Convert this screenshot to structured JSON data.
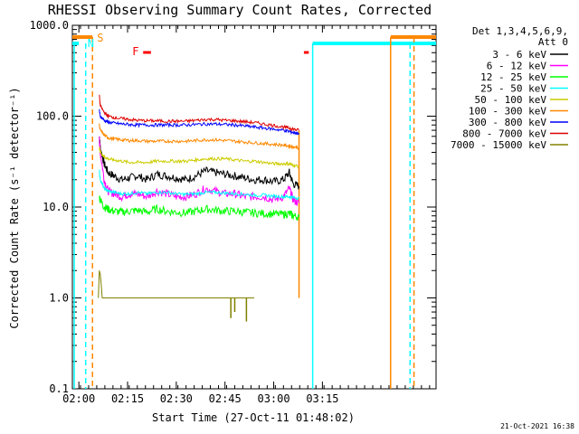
{
  "chart_data": {
    "type": "line",
    "title": "RHESSI Observing Summary Count Rates, Corrected",
    "xlabel": "Start Time (27-Oct-11 01:48:02)",
    "ylabel": "Corrected Count Rate (s⁻¹ detector⁻¹)",
    "yscale": "log",
    "ylim": [
      0.1,
      1000
    ],
    "xlim_minutes": [
      1.9667,
      3.8333
    ],
    "x_unit": "hour-of-day",
    "xticks": [
      {
        "label": "02:00",
        "value": 2.0
      },
      {
        "label": "02:15",
        "value": 2.25
      },
      {
        "label": "02:30",
        "value": 2.5
      },
      {
        "label": "02:45",
        "value": 2.75
      },
      {
        "label": "03:00",
        "value": 3.0
      },
      {
        "label": "03:15",
        "value": 3.25
      }
    ],
    "yticks": [
      {
        "label": "0.1",
        "value": 0.1
      },
      {
        "label": "1.0",
        "value": 1.0
      },
      {
        "label": "10.0",
        "value": 10.0
      },
      {
        "label": "100.0",
        "value": 100.0
      },
      {
        "label": "1000.0",
        "value": 1000.0
      }
    ],
    "legend_header": [
      "Det 1,3,4,5,6,9,",
      "Att 0"
    ],
    "legend_position": "right",
    "series": [
      {
        "name": "3 - 6 keV",
        "color": "#000000",
        "x": [
          2.105,
          2.11,
          2.13,
          2.15,
          2.18,
          2.22,
          2.26,
          2.3,
          2.35,
          2.4,
          2.45,
          2.5,
          2.55,
          2.6,
          2.65,
          2.7,
          2.75,
          2.8,
          2.85,
          2.9,
          2.95,
          3.0,
          3.05,
          3.08,
          3.1,
          3.13
        ],
        "y": [
          60,
          45,
          30,
          24,
          22,
          20,
          21,
          22,
          20,
          23,
          22,
          21,
          20,
          22,
          25,
          24,
          23,
          22,
          21,
          20,
          20,
          19,
          20,
          24,
          18,
          17
        ]
      },
      {
        "name": "6 - 12 keV",
        "color": "#ff00ff",
        "x": [
          2.105,
          2.11,
          2.13,
          2.15,
          2.18,
          2.22,
          2.26,
          2.3,
          2.35,
          2.4,
          2.45,
          2.5,
          2.55,
          2.6,
          2.65,
          2.7,
          2.75,
          2.8,
          2.85,
          2.9,
          2.95,
          3.0,
          3.05,
          3.08,
          3.1,
          3.13
        ],
        "y": [
          55,
          40,
          20,
          15,
          14,
          13,
          14,
          14,
          13,
          15,
          14,
          13,
          13,
          14,
          16,
          15,
          14,
          14,
          13,
          13,
          13,
          12,
          13,
          16,
          12,
          11
        ]
      },
      {
        "name": "12 - 25 keV",
        "color": "#00ff00",
        "x": [
          2.105,
          2.11,
          2.13,
          2.15,
          2.18,
          2.22,
          2.26,
          2.3,
          2.35,
          2.4,
          2.45,
          2.5,
          2.55,
          2.6,
          2.65,
          2.7,
          2.75,
          2.8,
          2.85,
          2.9,
          2.95,
          3.0,
          3.05,
          3.08,
          3.1,
          3.13
        ],
        "y": [
          13,
          12,
          10,
          9.5,
          9,
          8.8,
          9,
          9.2,
          8.8,
          9.5,
          9,
          8.8,
          8.6,
          9,
          9.5,
          9.3,
          9,
          9,
          8.8,
          8.6,
          8.5,
          8.4,
          8.3,
          8.5,
          8.0,
          7.8
        ]
      },
      {
        "name": "25 - 50 keV",
        "color": "#00ffff",
        "x": [
          2.105,
          2.11,
          2.13,
          2.15,
          2.18,
          2.22,
          2.26,
          2.3,
          2.35,
          2.4,
          2.45,
          2.5,
          2.55,
          2.6,
          2.65,
          2.7,
          2.75,
          2.8,
          2.85,
          2.9,
          2.95,
          3.0,
          3.05,
          3.08,
          3.1,
          3.13
        ],
        "y": [
          25,
          20,
          16,
          15,
          14.5,
          14,
          14,
          14.5,
          14,
          14.5,
          14.5,
          14,
          13.8,
          14,
          14.5,
          14.5,
          14.3,
          14,
          13.8,
          13.5,
          13.5,
          13.2,
          13,
          13,
          12.8,
          12.5
        ]
      },
      {
        "name": "50 - 100 keV",
        "color": "#cccc00",
        "x": [
          2.105,
          2.11,
          2.13,
          2.15,
          2.18,
          2.22,
          2.26,
          2.3,
          2.35,
          2.4,
          2.45,
          2.5,
          2.55,
          2.6,
          2.65,
          2.7,
          2.75,
          2.8,
          2.85,
          2.9,
          2.95,
          3.0,
          3.05,
          3.08,
          3.1,
          3.13
        ],
        "y": [
          45,
          40,
          36,
          34,
          33,
          32,
          31,
          31,
          31,
          32,
          32,
          32,
          32,
          33,
          34,
          34,
          34,
          33,
          32,
          32,
          31,
          30,
          30,
          30,
          29,
          28
        ]
      },
      {
        "name": "100 - 300 keV",
        "color": "#ff8800",
        "x": [
          2.105,
          2.11,
          2.13,
          2.15,
          2.18,
          2.22,
          2.26,
          2.3,
          2.35,
          2.4,
          2.45,
          2.5,
          2.55,
          2.6,
          2.65,
          2.7,
          2.75,
          2.8,
          2.85,
          2.9,
          2.95,
          3.0,
          3.05,
          3.08,
          3.1,
          3.13
        ],
        "y": [
          80,
          70,
          62,
          58,
          56,
          55,
          54,
          54,
          53,
          53,
          53,
          53,
          53,
          54,
          55,
          55,
          54,
          53,
          52,
          51,
          50,
          49,
          48,
          47,
          46,
          45
        ]
      },
      {
        "name": "300 - 800 keV",
        "color": "#0000ff",
        "x": [
          2.105,
          2.11,
          2.13,
          2.15,
          2.18,
          2.22,
          2.26,
          2.3,
          2.35,
          2.4,
          2.45,
          2.5,
          2.55,
          2.6,
          2.65,
          2.7,
          2.75,
          2.8,
          2.85,
          2.9,
          2.95,
          3.0,
          3.05,
          3.08,
          3.1,
          3.13
        ],
        "y": [
          115,
          100,
          90,
          86,
          84,
          82,
          81,
          80,
          80,
          80,
          80,
          80,
          80,
          81,
          82,
          82,
          81,
          80,
          78,
          76,
          74,
          72,
          70,
          68,
          66,
          65
        ]
      },
      {
        "name": "800 - 7000 keV",
        "color": "#dd0000",
        "x": [
          2.105,
          2.11,
          2.13,
          2.15,
          2.18,
          2.22,
          2.26,
          2.3,
          2.35,
          2.4,
          2.45,
          2.5,
          2.55,
          2.6,
          2.65,
          2.7,
          2.75,
          2.8,
          2.85,
          2.9,
          2.95,
          3.0,
          3.05,
          3.08,
          3.1,
          3.13
        ],
        "y": [
          170,
          130,
          110,
          100,
          97,
          94,
          92,
          90,
          89,
          89,
          88,
          88,
          88,
          90,
          92,
          92,
          90,
          89,
          87,
          85,
          82,
          79,
          76,
          74,
          72,
          70
        ]
      },
      {
        "name": "7000 - 15000 keV",
        "color": "#808000",
        "x": [
          2.1,
          2.105,
          2.11,
          2.115,
          2.12,
          2.3,
          2.35,
          2.4,
          2.45,
          2.5,
          2.55,
          2.6,
          2.65,
          2.7,
          2.75,
          2.8,
          2.85,
          2.9
        ],
        "y": [
          1.0,
          2.0,
          1.8,
          1.4,
          1.0,
          1.0,
          1.0,
          1.0,
          1.0,
          1.0,
          1.0,
          1.0,
          1.0,
          1.0,
          1.0,
          1.0,
          1.0,
          1.0
        ]
      }
    ],
    "flags": [
      {
        "label": "S",
        "color": "#ff8800"
      },
      {
        "label": "N",
        "color": "#00ffff"
      },
      {
        "label": "F",
        "color": "#ff0000"
      }
    ],
    "footer_date": "21-Oct-2021 16:38"
  }
}
